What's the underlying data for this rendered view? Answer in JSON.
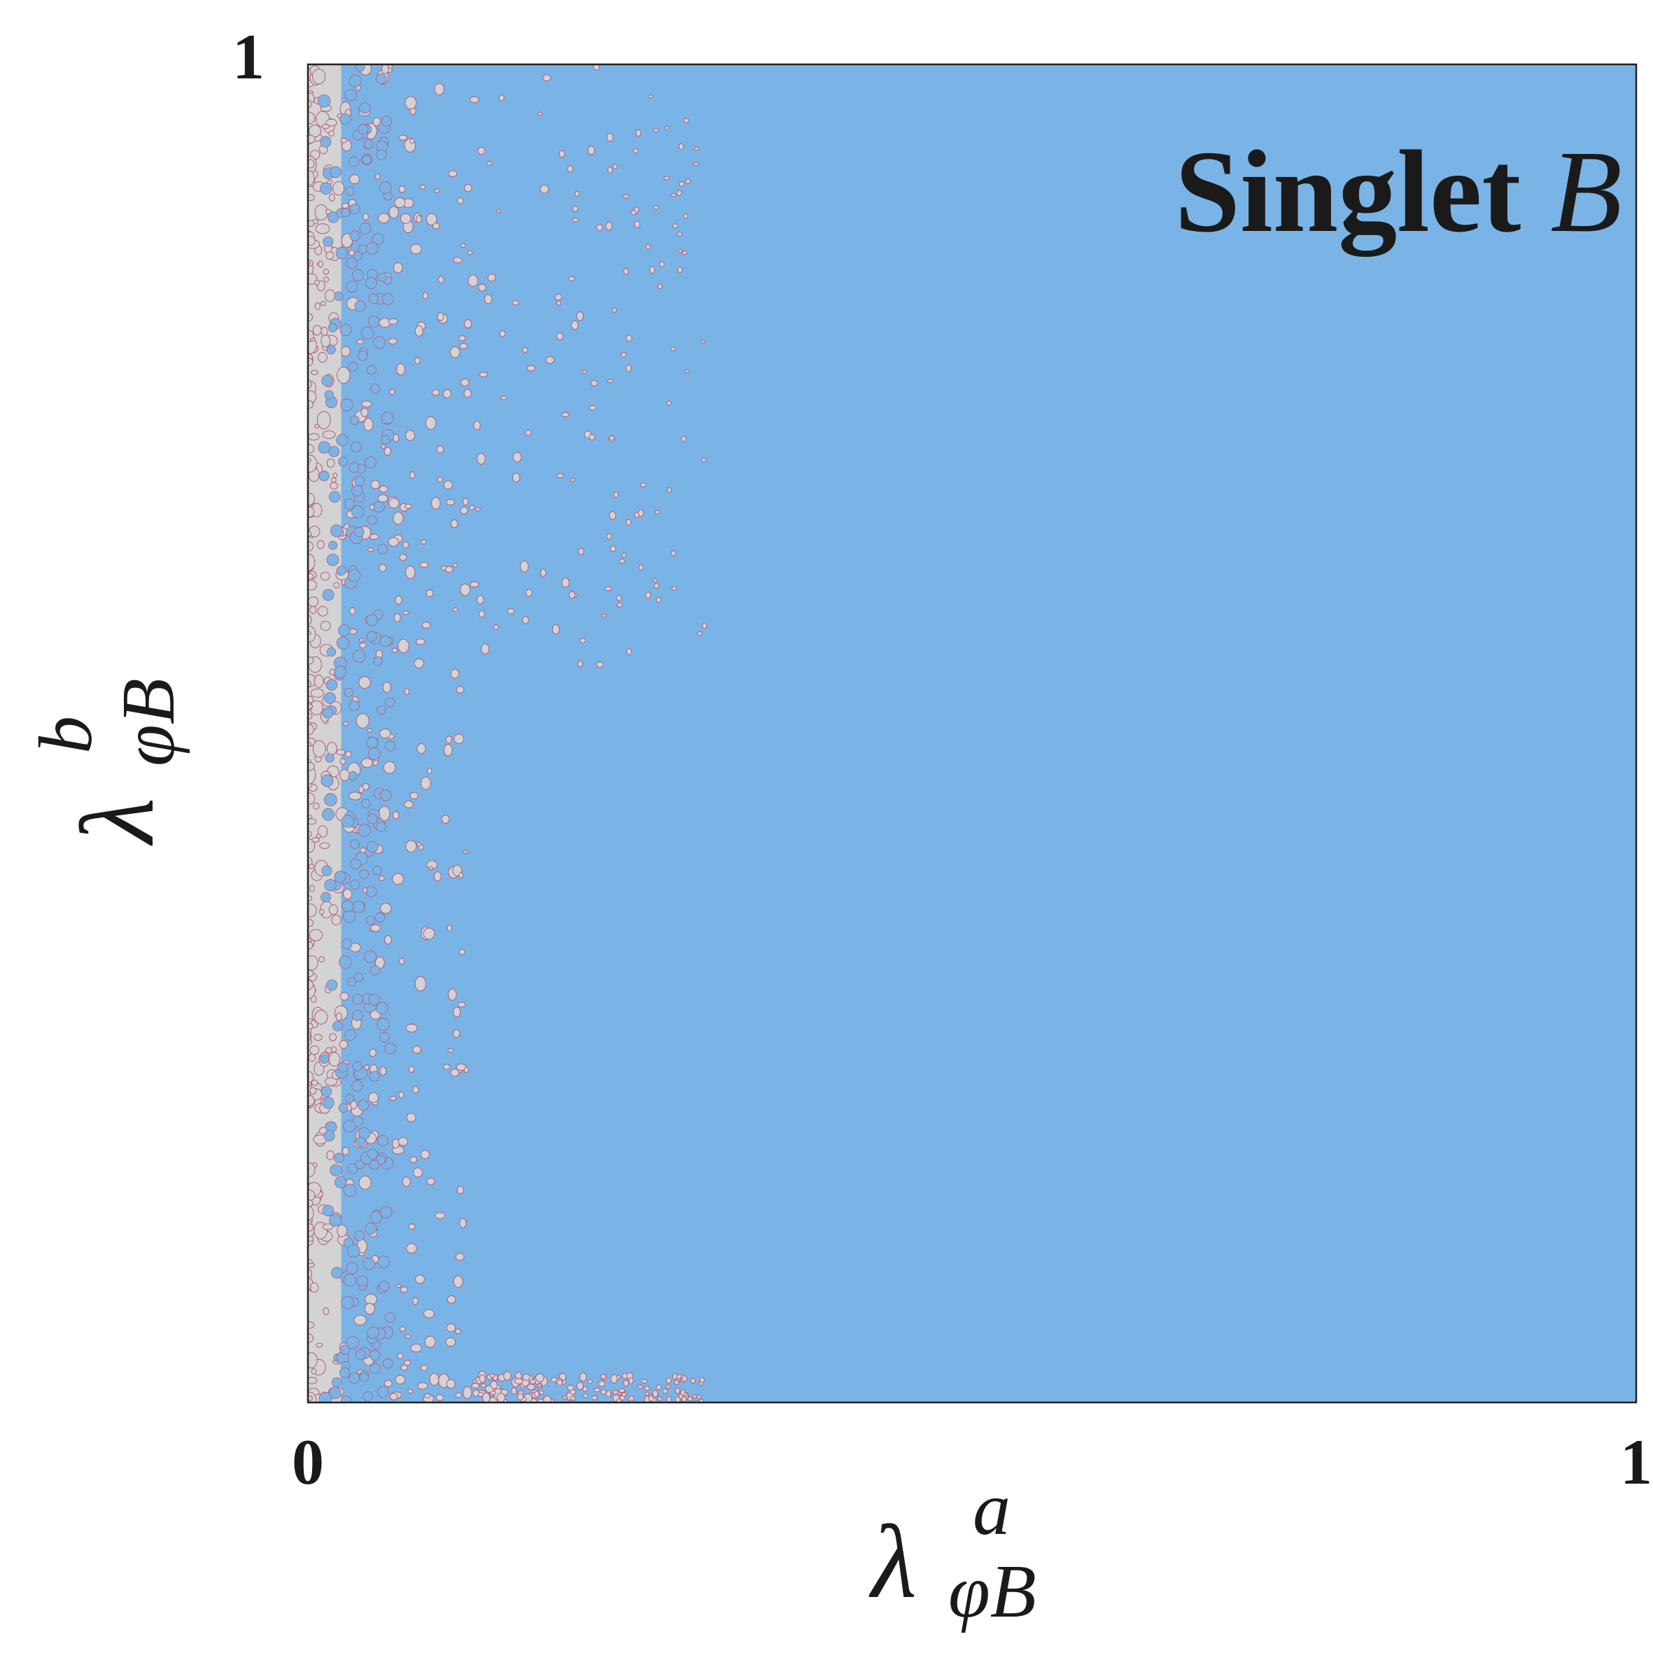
{
  "chart_data": {
    "type": "heatmap",
    "title": "Singlet B",
    "title_parts": {
      "text": "Singlet ",
      "italic": "B"
    },
    "xlabel": "λ^a_{φB}",
    "ylabel": "λ^b_{φB}",
    "xlabel_parts": {
      "main": "λ",
      "sup": "a",
      "sub": "φB"
    },
    "ylabel_parts": {
      "main": "λ",
      "sup": "b",
      "sub": "φB"
    },
    "xlim": [
      0,
      1
    ],
    "ylim": [
      0,
      1
    ],
    "x_ticks": [
      0,
      1
    ],
    "y_ticks": [
      1
    ],
    "x_tick_labels": [
      "0",
      "1"
    ],
    "y_tick_labels": [
      "1"
    ],
    "grid": false,
    "legend": "none",
    "regions": [
      {
        "name": "allowed",
        "color": "#7ab4e6",
        "extent_x": [
          0.0,
          1.0
        ],
        "extent_y": [
          0.0,
          1.0
        ]
      },
      {
        "name": "excluded",
        "color": "#d3d3d3",
        "extent_x": [
          0.0,
          0.025
        ],
        "extent_y": [
          0.0,
          1.0
        ]
      }
    ],
    "boundary_color": "#b05a7a",
    "scatter_fringe": {
      "x_range": [
        0.0,
        0.3
      ],
      "density": "decreasing with x"
    }
  },
  "colors": {
    "allowed": "#7ab4e6",
    "excluded": "#d3d3d3",
    "boundary": "#b05a7a",
    "frame": "#222222",
    "text": "#1a1a1a"
  }
}
